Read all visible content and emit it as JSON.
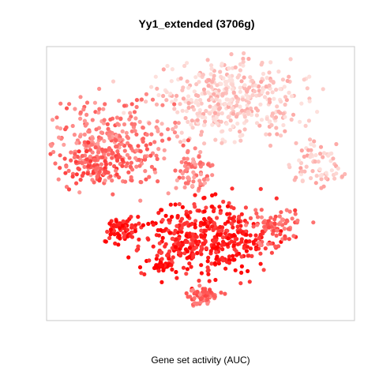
{
  "chart_data": {
    "type": "scatter",
    "title": "Yy1_extended (3706g)",
    "xlabel": "Gene set activity (AUC)",
    "ylabel": "",
    "xlim": [
      0,
      100
    ],
    "ylim": [
      0,
      100
    ],
    "grid": false,
    "legend": "none",
    "color_scale": {
      "low": "#fde0dc",
      "high": "#ff0000"
    },
    "clusters": [
      {
        "id": "upper-right",
        "cx": 60,
        "cy": 80,
        "rx": 22,
        "ry": 13,
        "n": 420,
        "level": 0.08
      },
      {
        "id": "right-tail",
        "cx": 88,
        "cy": 58,
        "rx": 8,
        "ry": 7,
        "n": 70,
        "level": 0.12
      },
      {
        "id": "upper-left",
        "cx": 22,
        "cy": 65,
        "rx": 18,
        "ry": 14,
        "n": 300,
        "level": 0.45
      },
      {
        "id": "left-lower-band",
        "cx": 15,
        "cy": 56,
        "rx": 9,
        "ry": 6,
        "n": 90,
        "level": 0.6
      },
      {
        "id": "bridge",
        "cx": 48,
        "cy": 55,
        "rx": 6,
        "ry": 7,
        "n": 70,
        "level": 0.4
      },
      {
        "id": "lower-main",
        "cx": 52,
        "cy": 30,
        "rx": 20,
        "ry": 12,
        "n": 450,
        "level": 0.85
      },
      {
        "id": "lower-right",
        "cx": 74,
        "cy": 34,
        "rx": 8,
        "ry": 6,
        "n": 80,
        "level": 0.55
      },
      {
        "id": "left-small",
        "cx": 25,
        "cy": 33,
        "rx": 6,
        "ry": 4,
        "n": 70,
        "level": 0.9
      },
      {
        "id": "bottom-tail",
        "cx": 51,
        "cy": 9,
        "rx": 5,
        "ry": 3,
        "n": 60,
        "level": 0.55
      },
      {
        "id": "bottom-left-spot",
        "cx": 38,
        "cy": 20,
        "rx": 3,
        "ry": 2,
        "n": 25,
        "level": 1.0
      }
    ]
  }
}
